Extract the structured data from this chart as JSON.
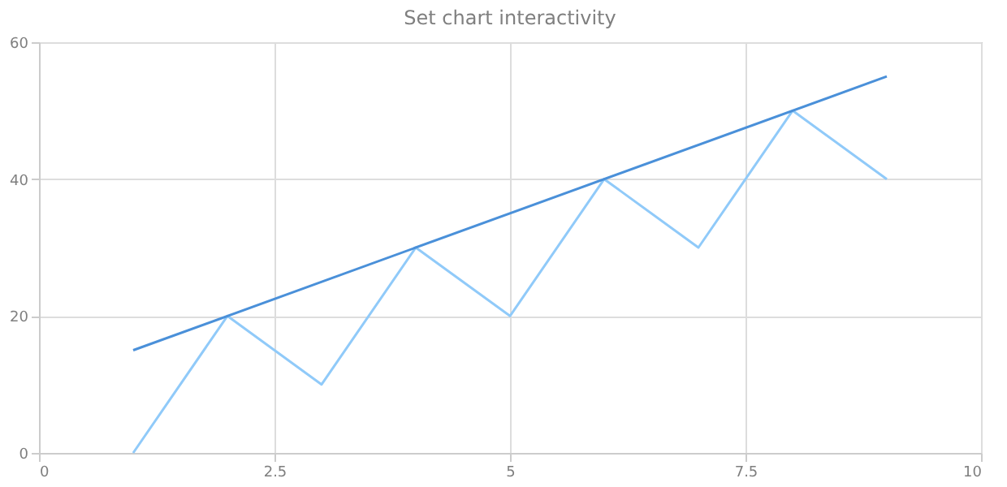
{
  "chart_data": {
    "type": "line",
    "title": "Set chart interactivity",
    "xlim": [
      0,
      10
    ],
    "xticks": [
      0,
      2.5,
      5,
      7.5,
      10
    ],
    "ylim": [
      0,
      60
    ],
    "yticks": [
      0,
      20,
      40,
      60
    ],
    "grid": true,
    "marker": "none",
    "line_style": "solid",
    "series": [
      {
        "color": "#90caf9",
        "x": [
          1,
          2,
          3,
          4,
          5,
          6,
          7,
          8,
          9
        ],
        "values": [
          0,
          20,
          10,
          30,
          20,
          40,
          30,
          50,
          40
        ]
      },
      {
        "color": "#4a90d9",
        "x": [
          1,
          9
        ],
        "values": [
          15,
          55
        ]
      }
    ]
  }
}
